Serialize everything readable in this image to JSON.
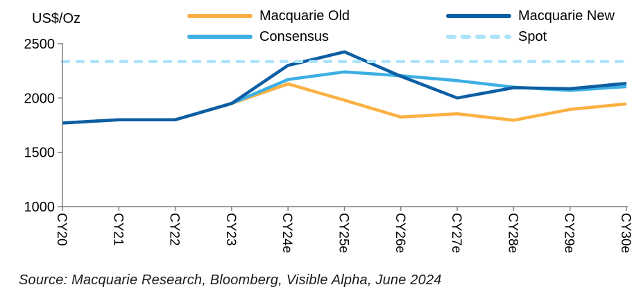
{
  "header": {
    "unit_label": "US$/Oz"
  },
  "legend": {
    "columns": [
      {
        "series_indexes": [
          0,
          1
        ]
      },
      {
        "series_indexes": [
          2,
          3
        ]
      }
    ]
  },
  "chart_data": {
    "type": "line",
    "title": "",
    "xlabel": "",
    "ylabel": "US$/Oz",
    "ylim": [
      1000,
      2500
    ],
    "yticks": [
      2500,
      2000,
      1500,
      1000
    ],
    "grid": false,
    "legend_position": "top",
    "categories": [
      "CY20",
      "CY21",
      "CY22",
      "CY23",
      "CY24e",
      "CY25e",
      "CY26e",
      "CY27e",
      "CY28e",
      "CY29e",
      "CY30e"
    ],
    "series": [
      {
        "name": "Macquarie Old",
        "color": "#FBB142",
        "style": "solid",
        "values": [
          1770,
          1800,
          1800,
          1950,
          2130,
          1980,
          1825,
          1855,
          1795,
          1895,
          1945
        ]
      },
      {
        "name": "Consensus",
        "color": "#3CAFE4",
        "style": "solid",
        "values": [
          1770,
          1800,
          1800,
          1950,
          2170,
          2240,
          2205,
          2160,
          2100,
          2070,
          2105
        ]
      },
      {
        "name": "Macquarie New",
        "color": "#0D5EA3",
        "style": "solid",
        "values": [
          1770,
          1800,
          1800,
          1950,
          2300,
          2425,
          2200,
          2000,
          2095,
          2085,
          2135
        ]
      },
      {
        "name": "Spot",
        "color": "#ABE3F9",
        "style": "dashed",
        "values": [
          2335,
          2335,
          2335,
          2335,
          2335,
          2335,
          2335,
          2335,
          2335,
          2335,
          2335
        ]
      }
    ]
  },
  "source": {
    "text": "Source: Macquarie Research, Bloomberg, Visible Alpha, June 2024"
  }
}
